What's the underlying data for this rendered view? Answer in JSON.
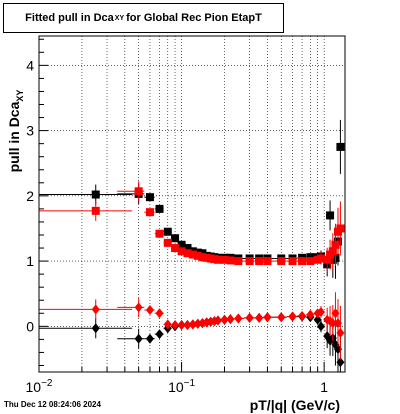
{
  "title": {
    "main": "Fitted pull in Dca",
    "sub": "XY",
    "tail": "for Global Rec Pion EtapT"
  },
  "timestamp": "Thu Dec 12 08:24:06 2024",
  "chart_data": {
    "type": "scatter",
    "title": "Fitted pull in Dca_XY for Global Rec Pion EtapT",
    "xlabel": "pT/|q| (GeV/c)",
    "ylabel": "pull in Dca",
    "ylabel_sub": "XY",
    "x_scale": "log",
    "xlim": [
      0.01,
      1.4
    ],
    "ylim": [
      -0.7,
      4.45
    ],
    "x_ticks": [
      {
        "v": 0.01,
        "base": "10",
        "exp": "−2"
      },
      {
        "v": 0.1,
        "base": "10",
        "exp": "−1"
      },
      {
        "v": 1,
        "base": "1",
        "exp": ""
      }
    ],
    "y_ticks": [
      0,
      1,
      2,
      3,
      4
    ],
    "grid": true,
    "series": [
      {
        "marker": "square",
        "color": "#000000",
        "x": [
          0.025,
          0.05,
          0.06,
          0.07,
          0.08,
          0.09,
          0.1,
          0.11,
          0.12,
          0.13,
          0.14,
          0.15,
          0.16,
          0.17,
          0.18,
          0.2,
          0.22,
          0.25,
          0.3,
          0.35,
          0.4,
          0.5,
          0.6,
          0.7,
          0.8,
          0.9,
          0.95,
          1.05,
          1.1,
          1.15,
          1.2,
          1.25,
          1.3
        ],
        "y": [
          2.02,
          2.03,
          1.98,
          1.8,
          1.45,
          1.35,
          1.25,
          1.2,
          1.15,
          1.13,
          1.12,
          1.08,
          1.07,
          1.06,
          1.05,
          1.05,
          1.05,
          1.04,
          1.04,
          1.04,
          1.04,
          1.04,
          1.04,
          1.05,
          1.06,
          1.06,
          1.07,
          0.95,
          1.7,
          1.02,
          1.05,
          1.3,
          2.75
        ]
      },
      {
        "marker": "square",
        "color": "#ff0000",
        "x": [
          0.025,
          0.05,
          0.06,
          0.07,
          0.08,
          0.09,
          0.1,
          0.11,
          0.12,
          0.13,
          0.14,
          0.15,
          0.16,
          0.17,
          0.18,
          0.2,
          0.22,
          0.25,
          0.3,
          0.35,
          0.4,
          0.5,
          0.6,
          0.7,
          0.8,
          0.9,
          0.95,
          1.05,
          1.1,
          1.15,
          1.2,
          1.25,
          1.3
        ],
        "y": [
          1.77,
          2.07,
          1.75,
          1.42,
          1.28,
          1.2,
          1.15,
          1.12,
          1.1,
          1.08,
          1.06,
          1.05,
          1.04,
          1.03,
          1.02,
          1.02,
          1.01,
          1.0,
          1.0,
          1.0,
          1.0,
          1.0,
          1.0,
          1.0,
          1.0,
          1.02,
          1.04,
          1.02,
          1.1,
          1.15,
          1.25,
          1.45,
          1.5
        ]
      },
      {
        "marker": "diamond",
        "color": "#000000",
        "x": [
          0.025,
          0.05,
          0.06,
          0.07,
          0.08,
          0.09,
          0.1,
          0.11,
          0.12,
          0.13,
          0.14,
          0.15,
          0.16,
          0.17,
          0.18,
          0.2,
          0.22,
          0.25,
          0.3,
          0.35,
          0.4,
          0.5,
          0.6,
          0.7,
          0.8,
          0.9,
          0.95,
          1.05,
          1.1,
          1.15,
          1.2,
          1.25,
          1.3
        ],
        "y": [
          -0.03,
          -0.19,
          -0.19,
          -0.12,
          -0.03,
          0.0,
          0.02,
          0.02,
          0.03,
          0.04,
          0.05,
          0.06,
          0.07,
          0.08,
          0.09,
          0.1,
          0.11,
          0.12,
          0.13,
          0.13,
          0.14,
          0.14,
          0.15,
          0.15,
          0.14,
          0.1,
          0.0,
          -0.15,
          -0.22,
          -0.18,
          -0.28,
          -0.35,
          -0.55
        ]
      },
      {
        "marker": "diamond",
        "color": "#ff0000",
        "x": [
          0.025,
          0.05,
          0.06,
          0.07,
          0.08,
          0.09,
          0.1,
          0.11,
          0.12,
          0.13,
          0.14,
          0.15,
          0.16,
          0.17,
          0.18,
          0.2,
          0.22,
          0.25,
          0.3,
          0.35,
          0.4,
          0.5,
          0.6,
          0.7,
          0.8,
          0.9,
          0.95,
          1.05,
          1.1,
          1.15,
          1.2,
          1.25,
          1.3
        ],
        "y": [
          0.26,
          0.29,
          0.25,
          0.2,
          0.03,
          0.02,
          0.02,
          0.02,
          0.03,
          0.04,
          0.05,
          0.06,
          0.07,
          0.08,
          0.09,
          0.1,
          0.11,
          0.12,
          0.13,
          0.13,
          0.14,
          0.14,
          0.15,
          0.16,
          0.18,
          0.2,
          0.22,
          0.1,
          0.08,
          0.05,
          0.2,
          0.05,
          -0.1
        ]
      }
    ]
  }
}
